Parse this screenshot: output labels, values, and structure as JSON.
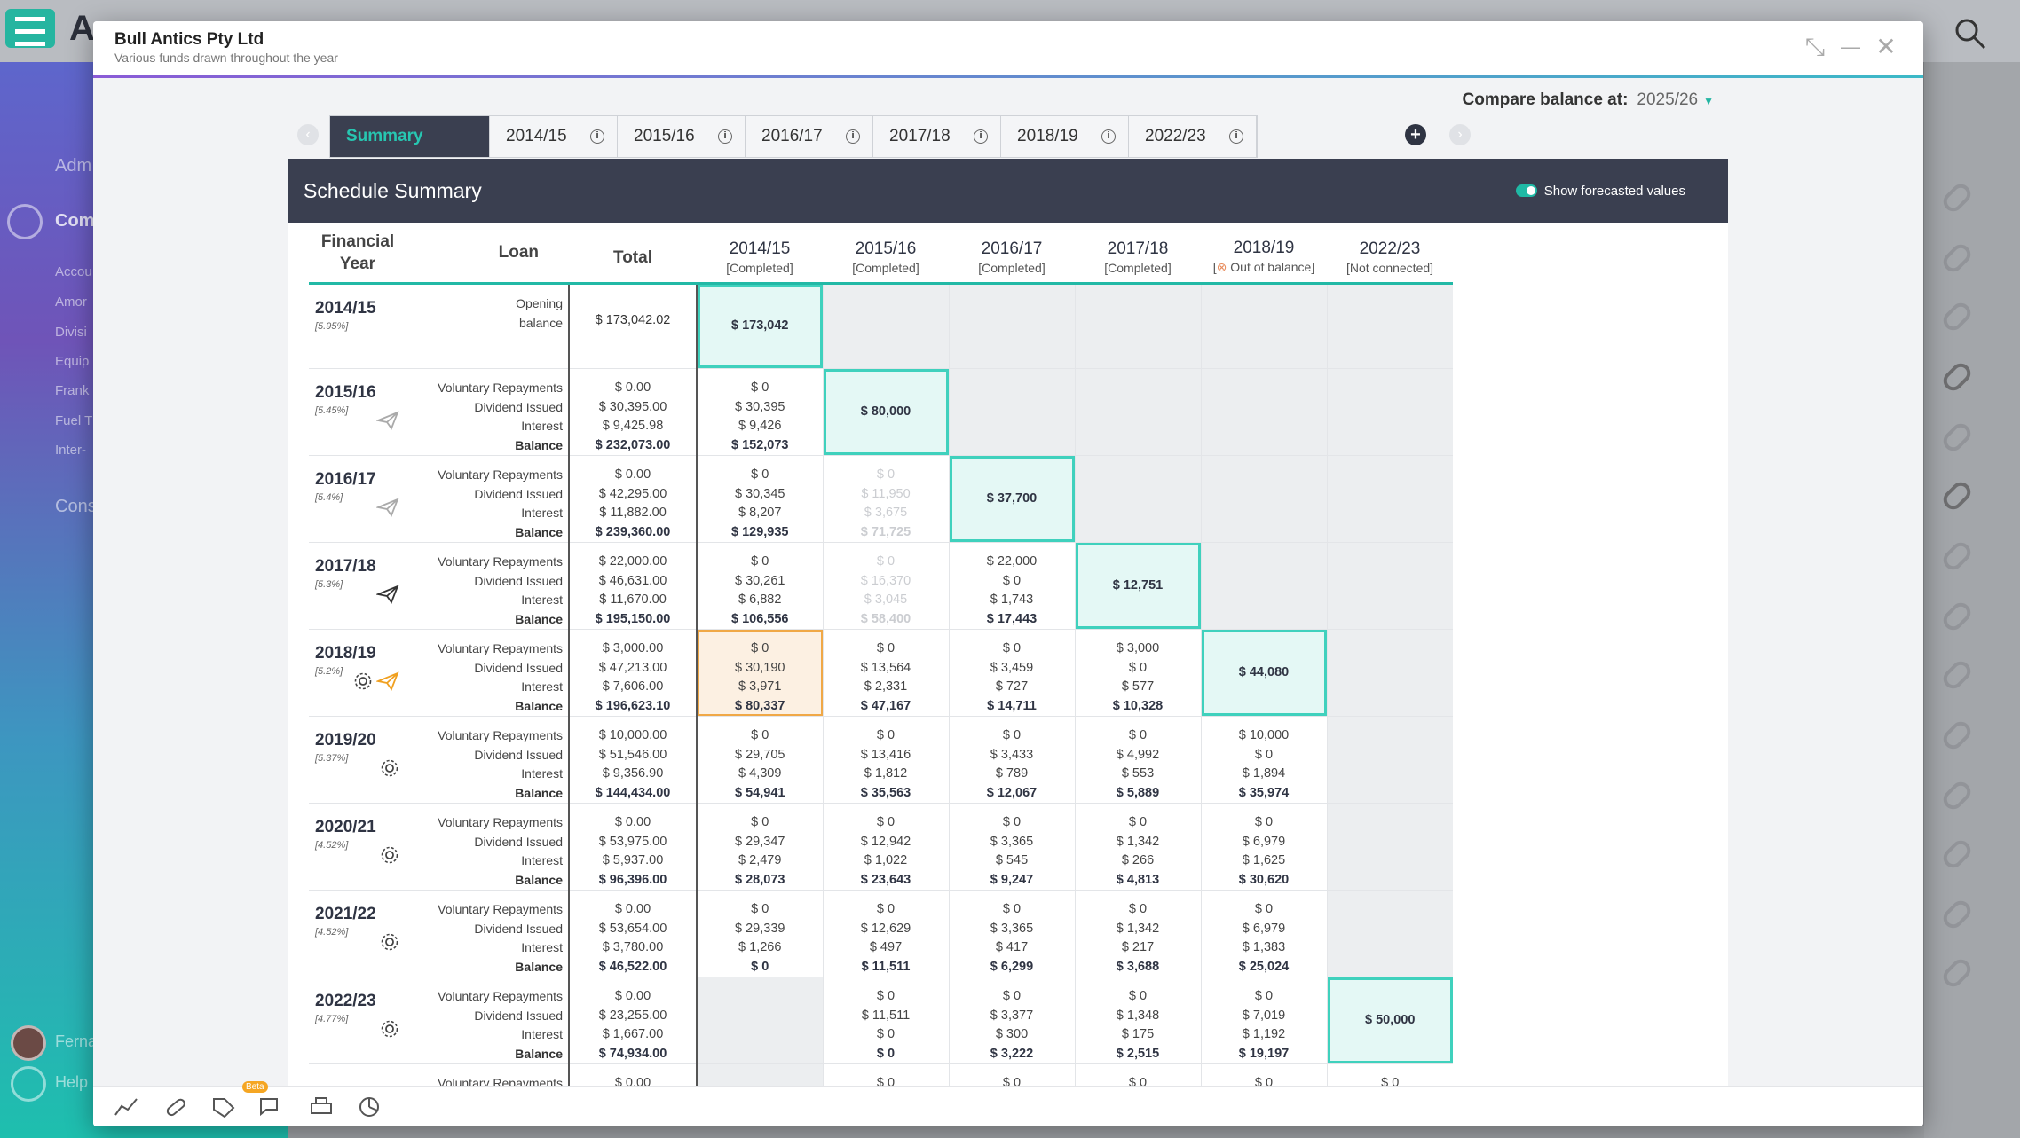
{
  "background": {
    "brand": "A",
    "side_items": [
      "Adm",
      "Com",
      "Accou",
      "Amor",
      "Divisi",
      "Equip",
      "Frank",
      "Fuel T",
      "Inter-",
      "Cons",
      "Ferna",
      "Help"
    ]
  },
  "modal": {
    "title": "Bull Antics Pty Ltd",
    "subtitle": "Various funds drawn throughout the year",
    "compare_label": "Compare balance at:",
    "compare_value": "2025/26",
    "tabs": [
      {
        "label": "Summary",
        "active": true
      },
      {
        "label": "2014/15"
      },
      {
        "label": "2015/16"
      },
      {
        "label": "2016/17"
      },
      {
        "label": "2017/18"
      },
      {
        "label": "2018/19"
      },
      {
        "label": "2022/23"
      }
    ],
    "card_title": "Schedule Summary",
    "forecast_toggle": "Show forecasted values",
    "columns": {
      "fy": "Financial Year",
      "loan": "Loan",
      "total": "Total",
      "years": [
        {
          "label": "2014/15",
          "status": "[Completed]"
        },
        {
          "label": "2015/16",
          "status": "[Completed]"
        },
        {
          "label": "2016/17",
          "status": "[Completed]"
        },
        {
          "label": "2017/18",
          "status": "[Completed]"
        },
        {
          "label": "2018/19",
          "status": "Out of balance]",
          "status_prefix": "["
        },
        {
          "label": "2022/23",
          "status": "[Not connected]"
        }
      ]
    },
    "row_labels": {
      "opening": [
        "Opening",
        "balance"
      ],
      "vr": "Voluntary Repayments",
      "di": "Dividend Issued",
      "int": "Interest",
      "bal": "Balance"
    },
    "rows": [
      {
        "year": "2014/15",
        "pct": "[5.95%]",
        "total": "$ 173,042.02",
        "cells": [
          "$ 173,042",
          "",
          "",
          "",
          "",
          ""
        ]
      },
      {
        "year": "2015/16",
        "pct": "[5.45%]",
        "total": [
          "$ 0.00",
          "$ 30,395.00",
          "$ 9,425.98",
          "$ 232,073.00"
        ],
        "cells": [
          [
            "$ 0",
            "$ 30,395",
            "$ 9,426",
            "$ 152,073"
          ],
          "$ 80,000",
          "",
          "",
          "",
          ""
        ]
      },
      {
        "year": "2016/17",
        "pct": "[5.4%]",
        "total": [
          "$ 0.00",
          "$ 42,295.00",
          "$ 11,882.00",
          "$ 239,360.00"
        ],
        "cells": [
          [
            "$ 0",
            "$ 30,345",
            "$ 8,207",
            "$ 129,935"
          ],
          [
            "$ 0",
            "$ 11,950",
            "$ 3,675",
            "$ 71,725"
          ],
          "$ 37,700",
          "",
          "",
          ""
        ]
      },
      {
        "year": "2017/18",
        "pct": "[5.3%]",
        "total": [
          "$ 22,000.00",
          "$ 46,631.00",
          "$ 11,670.00",
          "$ 195,150.00"
        ],
        "cells": [
          [
            "$ 0",
            "$ 30,261",
            "$ 6,882",
            "$ 106,556"
          ],
          [
            "$ 0",
            "$ 16,370",
            "$ 3,045",
            "$ 58,400"
          ],
          [
            "$ 22,000",
            "$ 0",
            "$ 1,743",
            "$ 17,443"
          ],
          "$ 12,751",
          "",
          ""
        ]
      },
      {
        "year": "2018/19",
        "pct": "[5.2%]",
        "total": [
          "$ 3,000.00",
          "$ 47,213.00",
          "$ 7,606.00",
          "$ 196,623.10"
        ],
        "cells": [
          [
            "$ 0",
            "$ 30,190",
            "$ 3,971",
            "$ 80,337"
          ],
          [
            "$ 0",
            "$ 13,564",
            "$ 2,331",
            "$ 47,167"
          ],
          [
            "$ 0",
            "$ 3,459",
            "$ 727",
            "$ 14,711"
          ],
          [
            "$ 3,000",
            "$ 0",
            "$ 577",
            "$ 10,328"
          ],
          "$ 44,080",
          ""
        ]
      },
      {
        "year": "2019/20",
        "pct": "[5.37%]",
        "total": [
          "$ 10,000.00",
          "$ 51,546.00",
          "$ 9,356.90",
          "$ 144,434.00"
        ],
        "cells": [
          [
            "$ 0",
            "$ 29,705",
            "$ 4,309",
            "$ 54,941"
          ],
          [
            "$ 0",
            "$ 13,416",
            "$ 1,812",
            "$ 35,563"
          ],
          [
            "$ 0",
            "$ 3,433",
            "$ 789",
            "$ 12,067"
          ],
          [
            "$ 0",
            "$ 4,992",
            "$ 553",
            "$ 5,889"
          ],
          [
            "$ 10,000",
            "$ 0",
            "$ 1,894",
            "$ 35,974"
          ],
          ""
        ]
      },
      {
        "year": "2020/21",
        "pct": "[4.52%]",
        "total": [
          "$ 0.00",
          "$ 53,975.00",
          "$ 5,937.00",
          "$ 96,396.00"
        ],
        "cells": [
          [
            "$ 0",
            "$ 29,347",
            "$ 2,479",
            "$ 28,073"
          ],
          [
            "$ 0",
            "$ 12,942",
            "$ 1,022",
            "$ 23,643"
          ],
          [
            "$ 0",
            "$ 3,365",
            "$ 545",
            "$ 9,247"
          ],
          [
            "$ 0",
            "$ 1,342",
            "$ 266",
            "$ 4,813"
          ],
          [
            "$ 0",
            "$ 6,979",
            "$ 1,625",
            "$ 30,620"
          ],
          ""
        ]
      },
      {
        "year": "2021/22",
        "pct": "[4.52%]",
        "total": [
          "$ 0.00",
          "$ 53,654.00",
          "$ 3,780.00",
          "$ 46,522.00"
        ],
        "cells": [
          [
            "$ 0",
            "$ 29,339",
            "$ 1,266",
            "$ 0"
          ],
          [
            "$ 0",
            "$ 12,629",
            "$ 497",
            "$ 11,511"
          ],
          [
            "$ 0",
            "$ 3,365",
            "$ 417",
            "$ 6,299"
          ],
          [
            "$ 0",
            "$ 1,342",
            "$ 217",
            "$ 3,688"
          ],
          [
            "$ 0",
            "$ 6,979",
            "$ 1,383",
            "$ 25,024"
          ],
          ""
        ]
      },
      {
        "year": "2022/23",
        "pct": "[4.77%]",
        "total": [
          "$ 0.00",
          "$ 23,255.00",
          "$ 1,667.00",
          "$ 74,934.00"
        ],
        "cells": [
          "",
          [
            "$ 0",
            "$ 11,511",
            "$ 0",
            "$ 0"
          ],
          [
            "$ 0",
            "$ 3,377",
            "$ 300",
            "$ 3,222"
          ],
          [
            "$ 0",
            "$ 1,348",
            "$ 175",
            "$ 2,515"
          ],
          [
            "$ 0",
            "$ 7,019",
            "$ 1,192",
            "$ 19,197"
          ],
          "$ 50,000"
        ]
      },
      {
        "year": "",
        "pct": "",
        "total": [
          "$ 0.00"
        ],
        "cells": [
          "",
          [
            "$ 0"
          ],
          [
            "$ 0"
          ],
          [
            "$ 0"
          ],
          [
            "$ 0"
          ],
          [
            "$ 0"
          ]
        ]
      }
    ],
    "toolbar": {
      "beta": "Beta"
    }
  }
}
